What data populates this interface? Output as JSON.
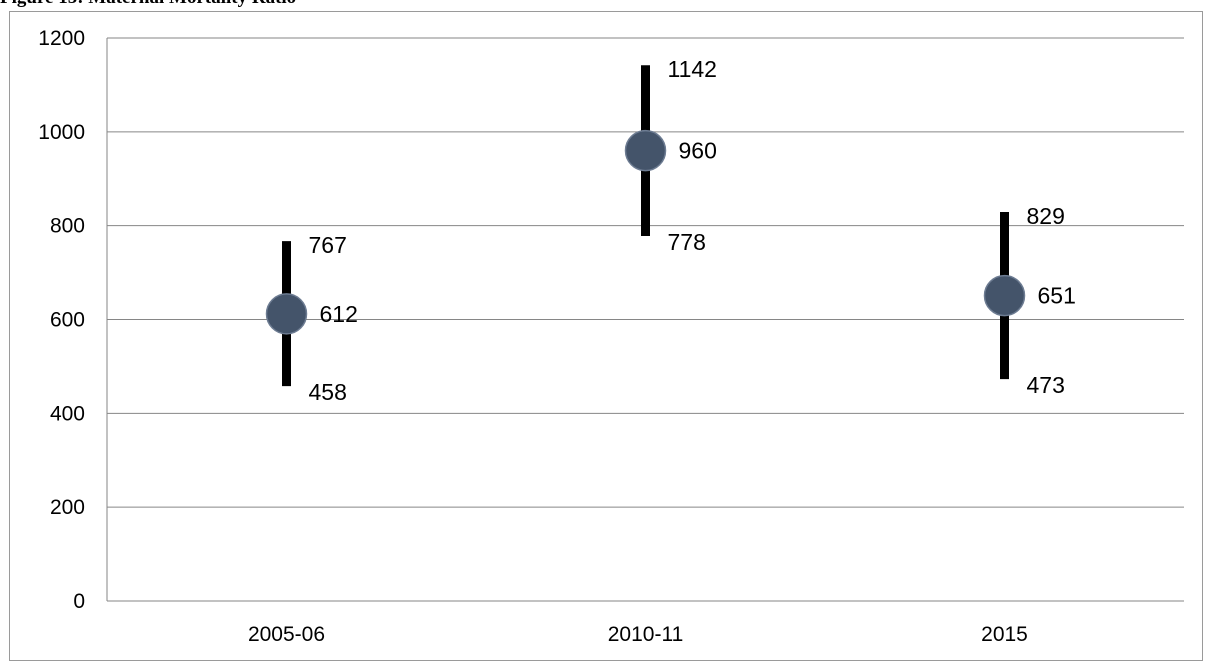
{
  "figure_title": "Figure 15: Maternal Mortality Ratio",
  "chart_data": {
    "type": "scatter",
    "title": "",
    "xlabel": "",
    "ylabel": "",
    "categories": [
      "2005-06",
      "2010-11",
      "2015"
    ],
    "series": [
      {
        "estimate": [
          612,
          960,
          651
        ],
        "upper": [
          767,
          1142,
          829
        ],
        "lower": [
          458,
          778,
          473
        ]
      }
    ],
    "ylim": [
      0,
      1200
    ],
    "yticks": [
      0,
      200,
      400,
      600,
      800,
      1000,
      1200
    ],
    "grid": true,
    "legend": "none",
    "colors": {
      "marker": "#44546a",
      "errorbar": "#000000",
      "grid": "#868686"
    }
  }
}
